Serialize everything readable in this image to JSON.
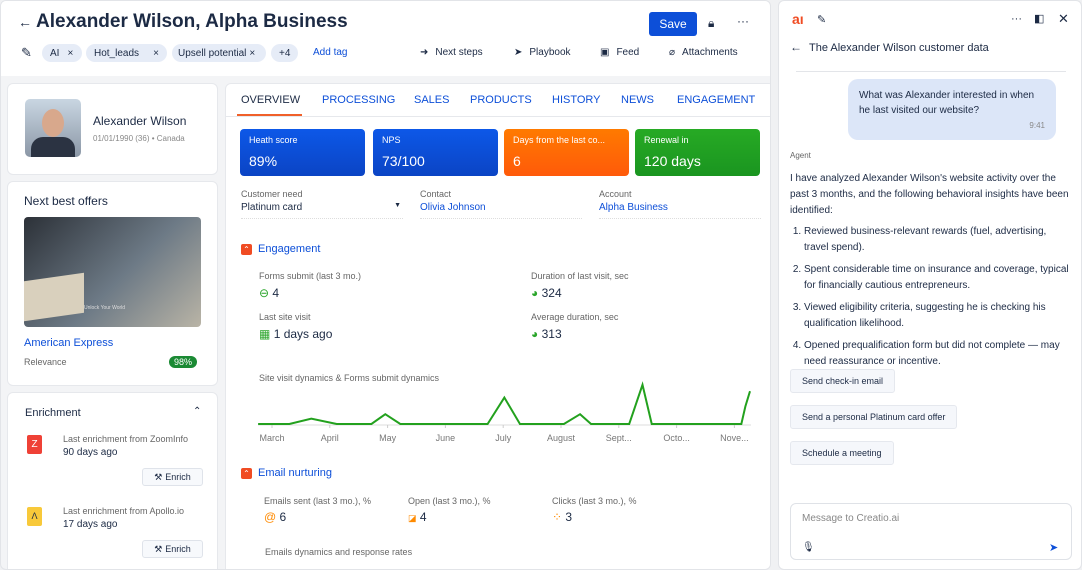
{
  "header": {
    "title": "Alexander Wilson, Alpha Business",
    "save_label": "Save",
    "tags": [
      "AI",
      "Hot_leads",
      "Upsell potential"
    ],
    "more_tags": "+4",
    "add_tag": "Add tag",
    "actions": [
      "Next steps",
      "Playbook",
      "Feed",
      "Attachments"
    ]
  },
  "profile": {
    "name": "Alexander Wilson",
    "meta": "01/01/1990 (36) • Canada"
  },
  "offers": {
    "title": "Next best offers",
    "image_caption": "Unlock Your World",
    "offer": "American Express",
    "relevance_label": "Relevance",
    "relevance": "98%"
  },
  "enrichment": {
    "title": "Enrichment",
    "items": [
      {
        "source": "Last enrichment from ZoomInfo",
        "age": "90 days ago",
        "button": "Enrich",
        "logo_color": "#ef4136"
      },
      {
        "source": "Last enrichment from Apollo.io",
        "age": "17 days ago",
        "button": "Enrich",
        "logo_color": "#f8c93a"
      }
    ]
  },
  "tabs": [
    "OVERVIEW",
    "PROCESSING",
    "SALES",
    "PRODUCTS",
    "HISTORY",
    "NEWS",
    "ENGAGEMENT"
  ],
  "kpis": [
    {
      "label": "Heath score",
      "value": "89%",
      "color": "#0d4fd8"
    },
    {
      "label": "NPS",
      "value": "73/100",
      "color": "#0d4fd8"
    },
    {
      "label": "Days from the last co...",
      "value": "6",
      "color": "#ff6a00"
    },
    {
      "label": "Renewal in",
      "value": "120 days",
      "color": "#23a11e"
    }
  ],
  "fields": {
    "need_label": "Customer need",
    "need": "Platinum card",
    "contact_label": "Contact",
    "contact": "Olivia Johnson",
    "account_label": "Account",
    "account": "Alpha Business"
  },
  "engagement": {
    "title": "Engagement",
    "metrics": [
      {
        "label": "Forms submit (last 3 mo.)",
        "value": "4"
      },
      {
        "label": "Duration of last visit, sec",
        "value": "324"
      },
      {
        "label": "Last site visit",
        "value": "1 days ago"
      },
      {
        "label": "Average duration, sec",
        "value": "313"
      }
    ]
  },
  "chart_data": {
    "type": "line",
    "title": "Site visit dynamics & Forms submit dynamics",
    "categories": [
      "March",
      "April",
      "May",
      "June",
      "July",
      "August",
      "Sept...",
      "Octo...",
      "Nove..."
    ],
    "series": [
      {
        "color": "#23a11e",
        "points": [
          [
            -0.24,
            0
          ],
          [
            0.3,
            0
          ],
          [
            0.68,
            1.1
          ],
          [
            1.12,
            0
          ],
          [
            1.72,
            0
          ],
          [
            1.96,
            2
          ],
          [
            2.22,
            0
          ],
          [
            3.73,
            0
          ],
          [
            4.02,
            5.4
          ],
          [
            4.29,
            0
          ],
          [
            5.05,
            0
          ],
          [
            5.33,
            2
          ],
          [
            5.52,
            0
          ],
          [
            6.18,
            0
          ],
          [
            6.41,
            8
          ],
          [
            6.57,
            0
          ],
          [
            8.12,
            0
          ],
          [
            8.19,
            3.6
          ],
          [
            8.27,
            6.7
          ]
        ]
      }
    ],
    "grid": false
  },
  "email": {
    "title": "Email nurturing",
    "metrics": [
      {
        "label": "Emails sent (last 3 mo.), %",
        "value": "6"
      },
      {
        "label": "Open (last 3 mo.), %",
        "value": "4"
      },
      {
        "label": "Clicks (last 3 mo.), %",
        "value": "3"
      }
    ],
    "chart_title": "Emails dynamics and response rates"
  },
  "chat": {
    "title": "The Alexander Wilson customer data",
    "question": "What was Alexander interested in when he last visited our website?",
    "time": "9:41",
    "agent_label": "Agent",
    "intro": "I have analyzed Alexander Wilson's website activity over the past 3 months, and the following behavioral insights have been identified:",
    "insights": [
      "Reviewed business-relevant rewards (fuel, advertising, travel spend).",
      "Spent considerable time on insurance and coverage, typical for financially cautious entrepreneurs.",
      "Viewed eligibility criteria, suggesting he is checking his qualification likelihood.",
      "Opened prequalification form but did not complete — may need reassurance or incentive."
    ],
    "suggestions": [
      "Send check-in email",
      "Send a personal Platinum card offer",
      "Schedule a meeting"
    ],
    "input_placeholder": "Message to Creatio.ai"
  }
}
